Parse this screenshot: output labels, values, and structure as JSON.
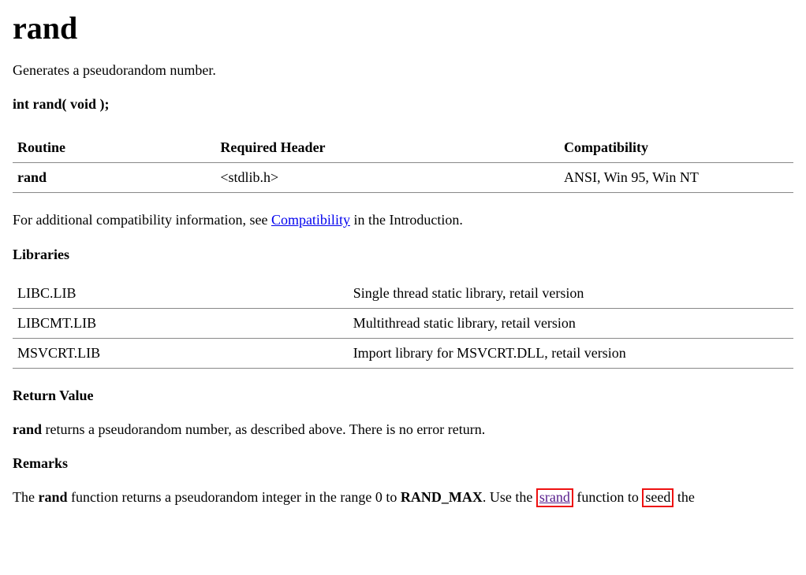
{
  "title": "rand",
  "summary": "Generates a pseudorandom number.",
  "signature": "int rand( void );",
  "compat_table": {
    "headers": [
      "Routine",
      "Required Header",
      "Compatibility"
    ],
    "row": {
      "routine": "rand",
      "required_header": "<stdlib.h>",
      "compatibility": "ANSI, Win 95, Win NT"
    }
  },
  "compat_sentence": {
    "prefix": "For additional compatibility information, see ",
    "link_text": "Compatibility",
    "suffix": " in the Introduction."
  },
  "libraries_heading": "Libraries",
  "libraries_table": {
    "rows": [
      {
        "name": "LIBC.LIB",
        "desc": "Single thread static library, retail version"
      },
      {
        "name": "LIBCMT.LIB",
        "desc": "Multithread static library, retail version"
      },
      {
        "name": "MSVCRT.LIB",
        "desc": "Import library for MSVCRT.DLL, retail version"
      }
    ]
  },
  "return_value_heading": "Return Value",
  "return_value_text": {
    "bold": "rand",
    "rest": " returns a pseudorandom number, as described above. There is no error return."
  },
  "remarks_heading": "Remarks",
  "remarks_text": {
    "p1_a": "The ",
    "p1_bold1": "rand",
    "p1_b": " function returns a pseudorandom integer in the range 0 to ",
    "p1_bold2": "RAND_MAX",
    "p1_c": ". Use the ",
    "p1_link1": "srand",
    "p1_d": " function to ",
    "p1_link2": "seed",
    "p1_e": " the"
  },
  "colors": {
    "link": "#0000ee",
    "visited": "#551a8b",
    "highlight_border": "#ee1111",
    "text": "#000000",
    "background": "#ffffff",
    "table_border": "#888888"
  }
}
